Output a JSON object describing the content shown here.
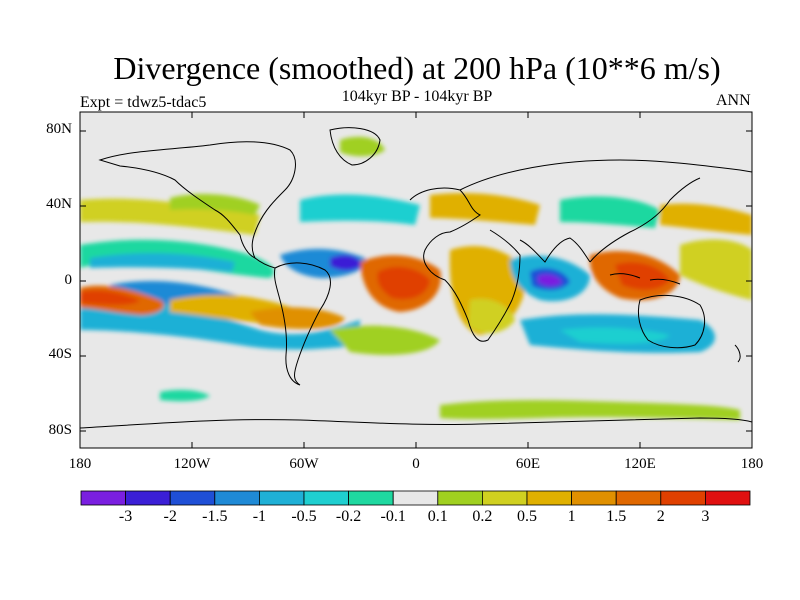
{
  "title": "Divergence (smoothed) at 200 hPa (10**6 m/s)",
  "subtitle": "104kyr BP - 104kyr BP",
  "experiment": "Expt = tdwz5-tdac5",
  "season": "ANN",
  "axes": {
    "y_ticks": [
      "80N",
      "40N",
      "0",
      "40S",
      "80S"
    ],
    "x_ticks": [
      "180",
      "120W",
      "60W",
      "0",
      "60E",
      "120E",
      "180"
    ]
  },
  "colorbar": {
    "colors": [
      "#7a1fe0",
      "#3b1fd6",
      "#1f4fd6",
      "#1f8ad6",
      "#1fb0d6",
      "#1fcfd0",
      "#1fd8a0",
      "#e8e8e8",
      "#a0d020",
      "#d0d020",
      "#e0b000",
      "#e09000",
      "#e06800",
      "#e04000",
      "#e01010"
    ],
    "labels": [
      "-3",
      "-2",
      "-1.5",
      "-1",
      "-0.5",
      "-0.2",
      "-0.1",
      "0.1",
      "0.2",
      "0.5",
      "1",
      "1.5",
      "2",
      "3"
    ]
  },
  "colors": {
    "background": "#e8e8e8",
    "coast": "#000000"
  }
}
